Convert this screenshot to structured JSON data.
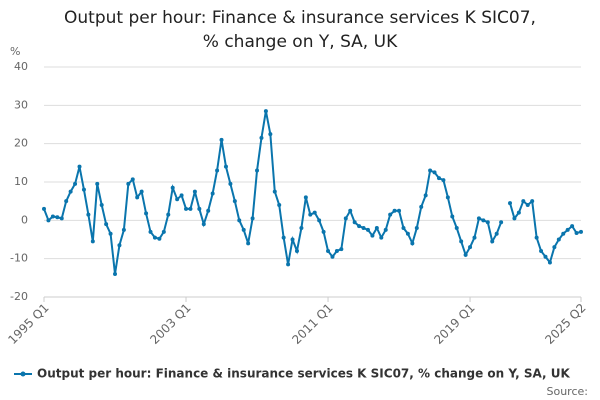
{
  "chart_data": {
    "type": "line",
    "title": "Output per hour: Finance & insurance services K SIC07, % change on Y, SA, UK",
    "y_label": "%",
    "source": "Source:",
    "categories": [
      "1995 Q1",
      null,
      null,
      null,
      null,
      null,
      null,
      null,
      null,
      null,
      null,
      null,
      null,
      null,
      null,
      null,
      null,
      null,
      null,
      null,
      null,
      null,
      null,
      null,
      null,
      null,
      null,
      null,
      null,
      null,
      null,
      null,
      "2003 Q1",
      null,
      null,
      null,
      null,
      null,
      null,
      null,
      null,
      null,
      null,
      null,
      null,
      null,
      null,
      null,
      null,
      null,
      null,
      null,
      null,
      null,
      null,
      null,
      null,
      null,
      null,
      null,
      null,
      null,
      null,
      null,
      "2011 Q1",
      null,
      null,
      null,
      null,
      null,
      null,
      null,
      null,
      null,
      null,
      null,
      null,
      null,
      null,
      null,
      null,
      null,
      null,
      null,
      null,
      null,
      null,
      null,
      null,
      null,
      null,
      null,
      null,
      null,
      null,
      null,
      "2019 Q1",
      null,
      null,
      null,
      null,
      null,
      null,
      null,
      null,
      null,
      null,
      null,
      null,
      null,
      null,
      null,
      null,
      null,
      null,
      null,
      null,
      null,
      null,
      null,
      null,
      "2025 Q2"
    ],
    "series": [
      {
        "name": "Output per hour: Finance & insurance services K SIC07, % change on Y, SA, UK",
        "color": "#0a75ad",
        "values": [
          3,
          0,
          1,
          0.8,
          0.5,
          5,
          7.5,
          9.5,
          14,
          8,
          1.5,
          -5.5,
          9.5,
          4,
          -1,
          -3.5,
          -14,
          -6.5,
          -2.5,
          9.5,
          10.7,
          6,
          7.5,
          1.8,
          -3,
          -4.5,
          -4.8,
          -3,
          1.5,
          8.5,
          5.5,
          6.5,
          3,
          3,
          7.5,
          3,
          -1,
          2.5,
          7,
          13,
          21,
          14,
          9.5,
          5,
          0,
          -2.5,
          -6,
          0.5,
          13,
          21.5,
          28.5,
          22.5,
          7.5,
          4,
          -4.5,
          -11.5,
          -5,
          -8,
          -2,
          6,
          1.5,
          2,
          0,
          -3,
          -8,
          -9.5,
          -8,
          -7.5,
          0.5,
          2.5,
          -0.5,
          -1.5,
          -2,
          -2.5,
          -4,
          -2,
          -4.5,
          -2.5,
          1.5,
          2.5,
          2.5,
          -2,
          -3.5,
          -6,
          -2,
          3.5,
          6.5,
          13,
          12.5,
          11,
          10.5,
          6,
          1,
          -2,
          -5.5,
          -9,
          -7,
          -4.5,
          0.5,
          0,
          -0.5,
          -5.5,
          -3.5,
          -0.5,
          null,
          4.5,
          0.5,
          2,
          5,
          4,
          5,
          -4.5,
          -8,
          -9.5,
          -11,
          -7,
          -5,
          -3.5,
          -2.5,
          -1.5,
          -3.3,
          -3
        ]
      }
    ],
    "ylim": [
      -20,
      40
    ],
    "yticks": [
      -20,
      -10,
      0,
      10,
      20,
      30,
      40
    ],
    "grid": true
  }
}
